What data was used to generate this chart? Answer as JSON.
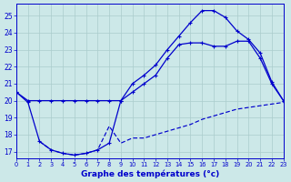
{
  "title": "Graphe des températures (°c)",
  "bg_color": "#cce8e8",
  "grid_color": "#aacccc",
  "line_color": "#0000cc",
  "xlim": [
    0,
    23
  ],
  "ylim": [
    16.6,
    25.7
  ],
  "x_ticks": [
    0,
    1,
    2,
    3,
    4,
    5,
    6,
    7,
    8,
    9,
    10,
    11,
    12,
    13,
    14,
    15,
    16,
    17,
    18,
    19,
    20,
    21,
    22,
    23
  ],
  "y_ticks": [
    17,
    18,
    19,
    20,
    21,
    22,
    23,
    24,
    25
  ],
  "hours": [
    0,
    1,
    2,
    3,
    4,
    5,
    6,
    7,
    8,
    9,
    10,
    11,
    12,
    13,
    14,
    15,
    16,
    17,
    18,
    19,
    20,
    21,
    22,
    23
  ],
  "line1": [
    20.5,
    20.0,
    20.0,
    20.0,
    20.0,
    20.0,
    20.0,
    20.0,
    20.0,
    20.0,
    21.0,
    21.5,
    22.1,
    23.0,
    23.8,
    24.6,
    25.3,
    25.3,
    24.9,
    24.1,
    23.6,
    22.8,
    21.1,
    20.0
  ],
  "line2": [
    20.5,
    19.9,
    17.6,
    17.1,
    16.9,
    16.8,
    16.9,
    17.1,
    17.5,
    20.0,
    20.5,
    21.0,
    21.5,
    22.5,
    23.3,
    23.4,
    23.4,
    23.2,
    23.2,
    23.5,
    23.5,
    22.5,
    21.0,
    20.0
  ],
  "line3_x": [
    2,
    3,
    4,
    5,
    6,
    7,
    8,
    9,
    10,
    11,
    12,
    13,
    14,
    15,
    16,
    17,
    18,
    19,
    20,
    21,
    22,
    23
  ],
  "line3_y": [
    17.6,
    17.1,
    16.9,
    16.8,
    16.9,
    17.1,
    18.5,
    17.5,
    17.8,
    17.8,
    18.0,
    18.2,
    18.4,
    18.6,
    18.9,
    19.1,
    19.3,
    19.5,
    19.6,
    19.7,
    19.8,
    19.9
  ]
}
